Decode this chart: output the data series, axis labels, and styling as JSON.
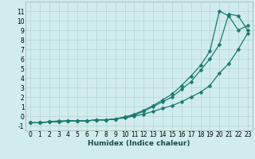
{
  "xlabel": "Humidex (Indice chaleur)",
  "x_values": [
    0,
    1,
    2,
    3,
    4,
    5,
    6,
    7,
    8,
    9,
    10,
    11,
    12,
    13,
    14,
    15,
    16,
    17,
    18,
    19,
    20,
    21,
    22,
    23
  ],
  "line1_y": [
    -0.7,
    -0.7,
    -0.6,
    -0.6,
    -0.5,
    -0.5,
    -0.5,
    -0.4,
    -0.4,
    -0.3,
    -0.2,
    0.0,
    0.2,
    0.5,
    0.8,
    1.1,
    1.5,
    2.0,
    2.5,
    3.2,
    4.5,
    5.5,
    7.0,
    8.7
  ],
  "line2_y": [
    -0.7,
    -0.7,
    -0.6,
    -0.6,
    -0.5,
    -0.5,
    -0.5,
    -0.4,
    -0.4,
    -0.3,
    -0.1,
    0.1,
    0.5,
    1.0,
    1.5,
    2.0,
    2.8,
    3.6,
    4.8,
    6.0,
    7.5,
    10.7,
    10.5,
    9.0
  ],
  "line3_y": [
    -0.7,
    -0.7,
    -0.6,
    -0.5,
    -0.5,
    -0.5,
    -0.5,
    -0.4,
    -0.4,
    -0.3,
    -0.1,
    0.2,
    0.6,
    1.1,
    1.7,
    2.3,
    3.2,
    4.2,
    5.3,
    6.8,
    11.0,
    10.5,
    9.0,
    9.5
  ],
  "line_color": "#1a7a6e",
  "bg_color": "#d0ecec",
  "grid_color": "#b5d5d5",
  "ylim": [
    -1.5,
    12.0
  ],
  "xlim": [
    -0.5,
    23.5
  ],
  "yticks": [
    -1,
    0,
    1,
    2,
    3,
    4,
    5,
    6,
    7,
    8,
    9,
    10,
    11
  ],
  "xticks": [
    0,
    1,
    2,
    3,
    4,
    5,
    6,
    7,
    8,
    9,
    10,
    11,
    12,
    13,
    14,
    15,
    16,
    17,
    18,
    19,
    20,
    21,
    22,
    23
  ],
  "markersize": 2.5,
  "linewidth": 0.9,
  "xlabel_fontsize": 6.5,
  "tick_fontsize": 5.5
}
